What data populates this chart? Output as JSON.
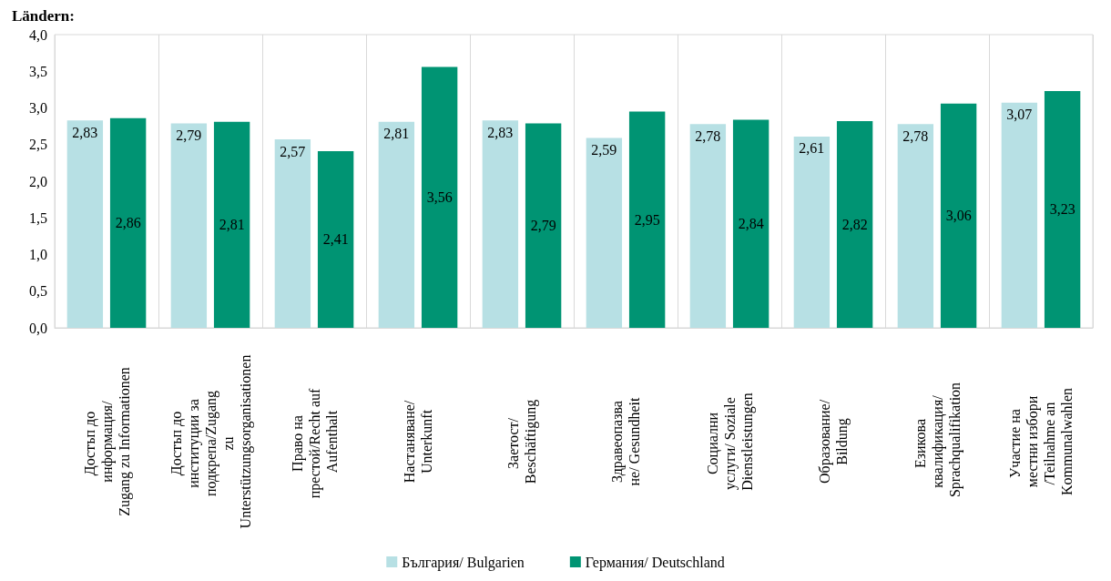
{
  "chart_data": {
    "type": "bar",
    "title": "Ländern:",
    "categories": [
      "Достъп до информация/Zugang zu Informationen",
      "Достъп до институции за подкрепа/Zugang zu Unterstützungsorganisationen",
      "Право на престой/Recht auf Aufenthalt",
      "Настаняване/Unterkunft",
      "Заетост/ Beschäftigung",
      "Здравеопазване/ Gesundheit",
      "Социални услуги/ Soziale Dienstleistungen",
      "Образование/Bildung",
      "Езикова квалификация/ Sprachqualifikation",
      "Участие на местни избори/Teilnahme an Kommunalwahlen"
    ],
    "series": [
      {
        "name": "България/ Bulgarien",
        "color": "#b7e0e4",
        "values": [
          2.83,
          2.79,
          2.57,
          2.81,
          2.83,
          2.59,
          2.78,
          2.61,
          2.78,
          3.07
        ],
        "value_labels": [
          "2,83",
          "2,79",
          "2,57",
          "2,81",
          "2,83",
          "2,59",
          "2,78",
          "2,61",
          "2,78",
          "3,07"
        ]
      },
      {
        "name": "Германия/ Deutschland",
        "color": "#009473",
        "values": [
          2.86,
          2.81,
          2.41,
          3.56,
          2.79,
          2.95,
          2.84,
          2.82,
          3.06,
          3.23
        ],
        "value_labels": [
          "2,86",
          "2,81",
          "2,41",
          "3,56",
          "2,79",
          "2,95",
          "2,84",
          "2,82",
          "3,06",
          "3,23"
        ]
      }
    ],
    "ylim": [
      0,
      4
    ],
    "yticks": [
      {
        "value": 0,
        "label": "0,0"
      },
      {
        "value": 0.5,
        "label": "0,5"
      },
      {
        "value": 1,
        "label": "1,0"
      },
      {
        "value": 1.5,
        "label": "1,5"
      },
      {
        "value": 2,
        "label": "2,0"
      },
      {
        "value": 2.5,
        "label": "2,5"
      },
      {
        "value": 3,
        "label": "3,0"
      },
      {
        "value": 3.5,
        "label": "3,5"
      },
      {
        "value": 4,
        "label": "4,0"
      }
    ],
    "grid": "x",
    "legend": "bottom"
  }
}
